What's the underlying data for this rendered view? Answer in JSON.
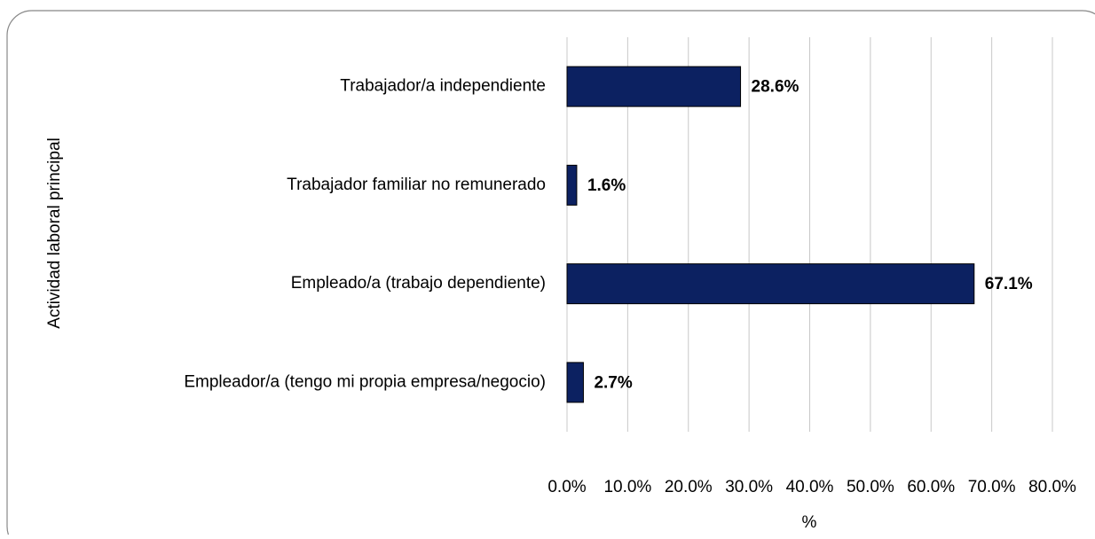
{
  "chart_data": {
    "type": "bar",
    "orientation": "horizontal",
    "categories": [
      "Trabajador/a independiente",
      "Trabajador familiar no remunerado",
      "Empleado/a (trabajo dependiente)",
      "Empleador/a (tengo mi propia empresa/negocio)"
    ],
    "values": [
      28.6,
      1.6,
      67.1,
      2.7
    ],
    "value_labels": [
      "28.6%",
      "1.6%",
      "67.1%",
      "2.7%"
    ],
    "color": "#0c2161",
    "xlim": [
      0,
      80
    ],
    "xticks": [
      {
        "value": 0,
        "label": "0.0%"
      },
      {
        "value": 10,
        "label": "10.0%"
      },
      {
        "value": 20,
        "label": "20.0%"
      },
      {
        "value": 30,
        "label": "30.0%"
      },
      {
        "value": 40,
        "label": "40.0%"
      },
      {
        "value": 50,
        "label": "50.0%"
      },
      {
        "value": 60,
        "label": "60.0%"
      },
      {
        "value": 70,
        "label": "70.0%"
      },
      {
        "value": 80,
        "label": "80.0%"
      }
    ],
    "x_label": "%",
    "y_label": "Actividad laboral principal",
    "grid": true
  }
}
